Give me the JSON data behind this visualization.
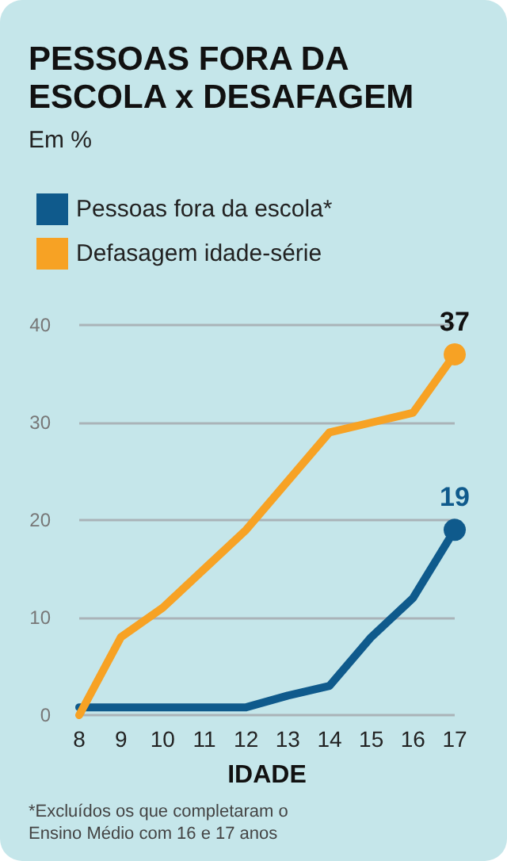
{
  "chart_data": {
    "type": "line",
    "title": "PESSOAS FORA DA ESCOLA x DESAFAGEM",
    "subtitle": "Em %",
    "xlabel": "IDADE",
    "categories": [
      "8",
      "9",
      "10",
      "11",
      "12",
      "13",
      "14",
      "15",
      "16",
      "17"
    ],
    "series": [
      {
        "name": "Pessoas fora da escola*",
        "color": "#0f5a8c",
        "values": [
          0.8,
          0.8,
          0.8,
          0.8,
          0.8,
          2,
          3,
          8,
          12,
          19
        ],
        "value_labels": [
          null,
          null,
          null,
          null,
          null,
          null,
          null,
          null,
          null,
          "19"
        ]
      },
      {
        "name": "Defasagem idade-série",
        "color": "#f7a224",
        "values": [
          0,
          8,
          11,
          15,
          19,
          24,
          29,
          30,
          31,
          37
        ],
        "value_labels": [
          null,
          null,
          null,
          null,
          null,
          null,
          null,
          null,
          null,
          "37"
        ]
      }
    ],
    "ylim": [
      0,
      40
    ],
    "yticks": [
      0,
      10,
      20,
      30,
      40
    ],
    "grid": "y",
    "legend": "top left",
    "line_style": "solid",
    "annotations": [
      "*Excluídos os que completaram o Ensino Médio com 16 e 17 anos"
    ]
  }
}
